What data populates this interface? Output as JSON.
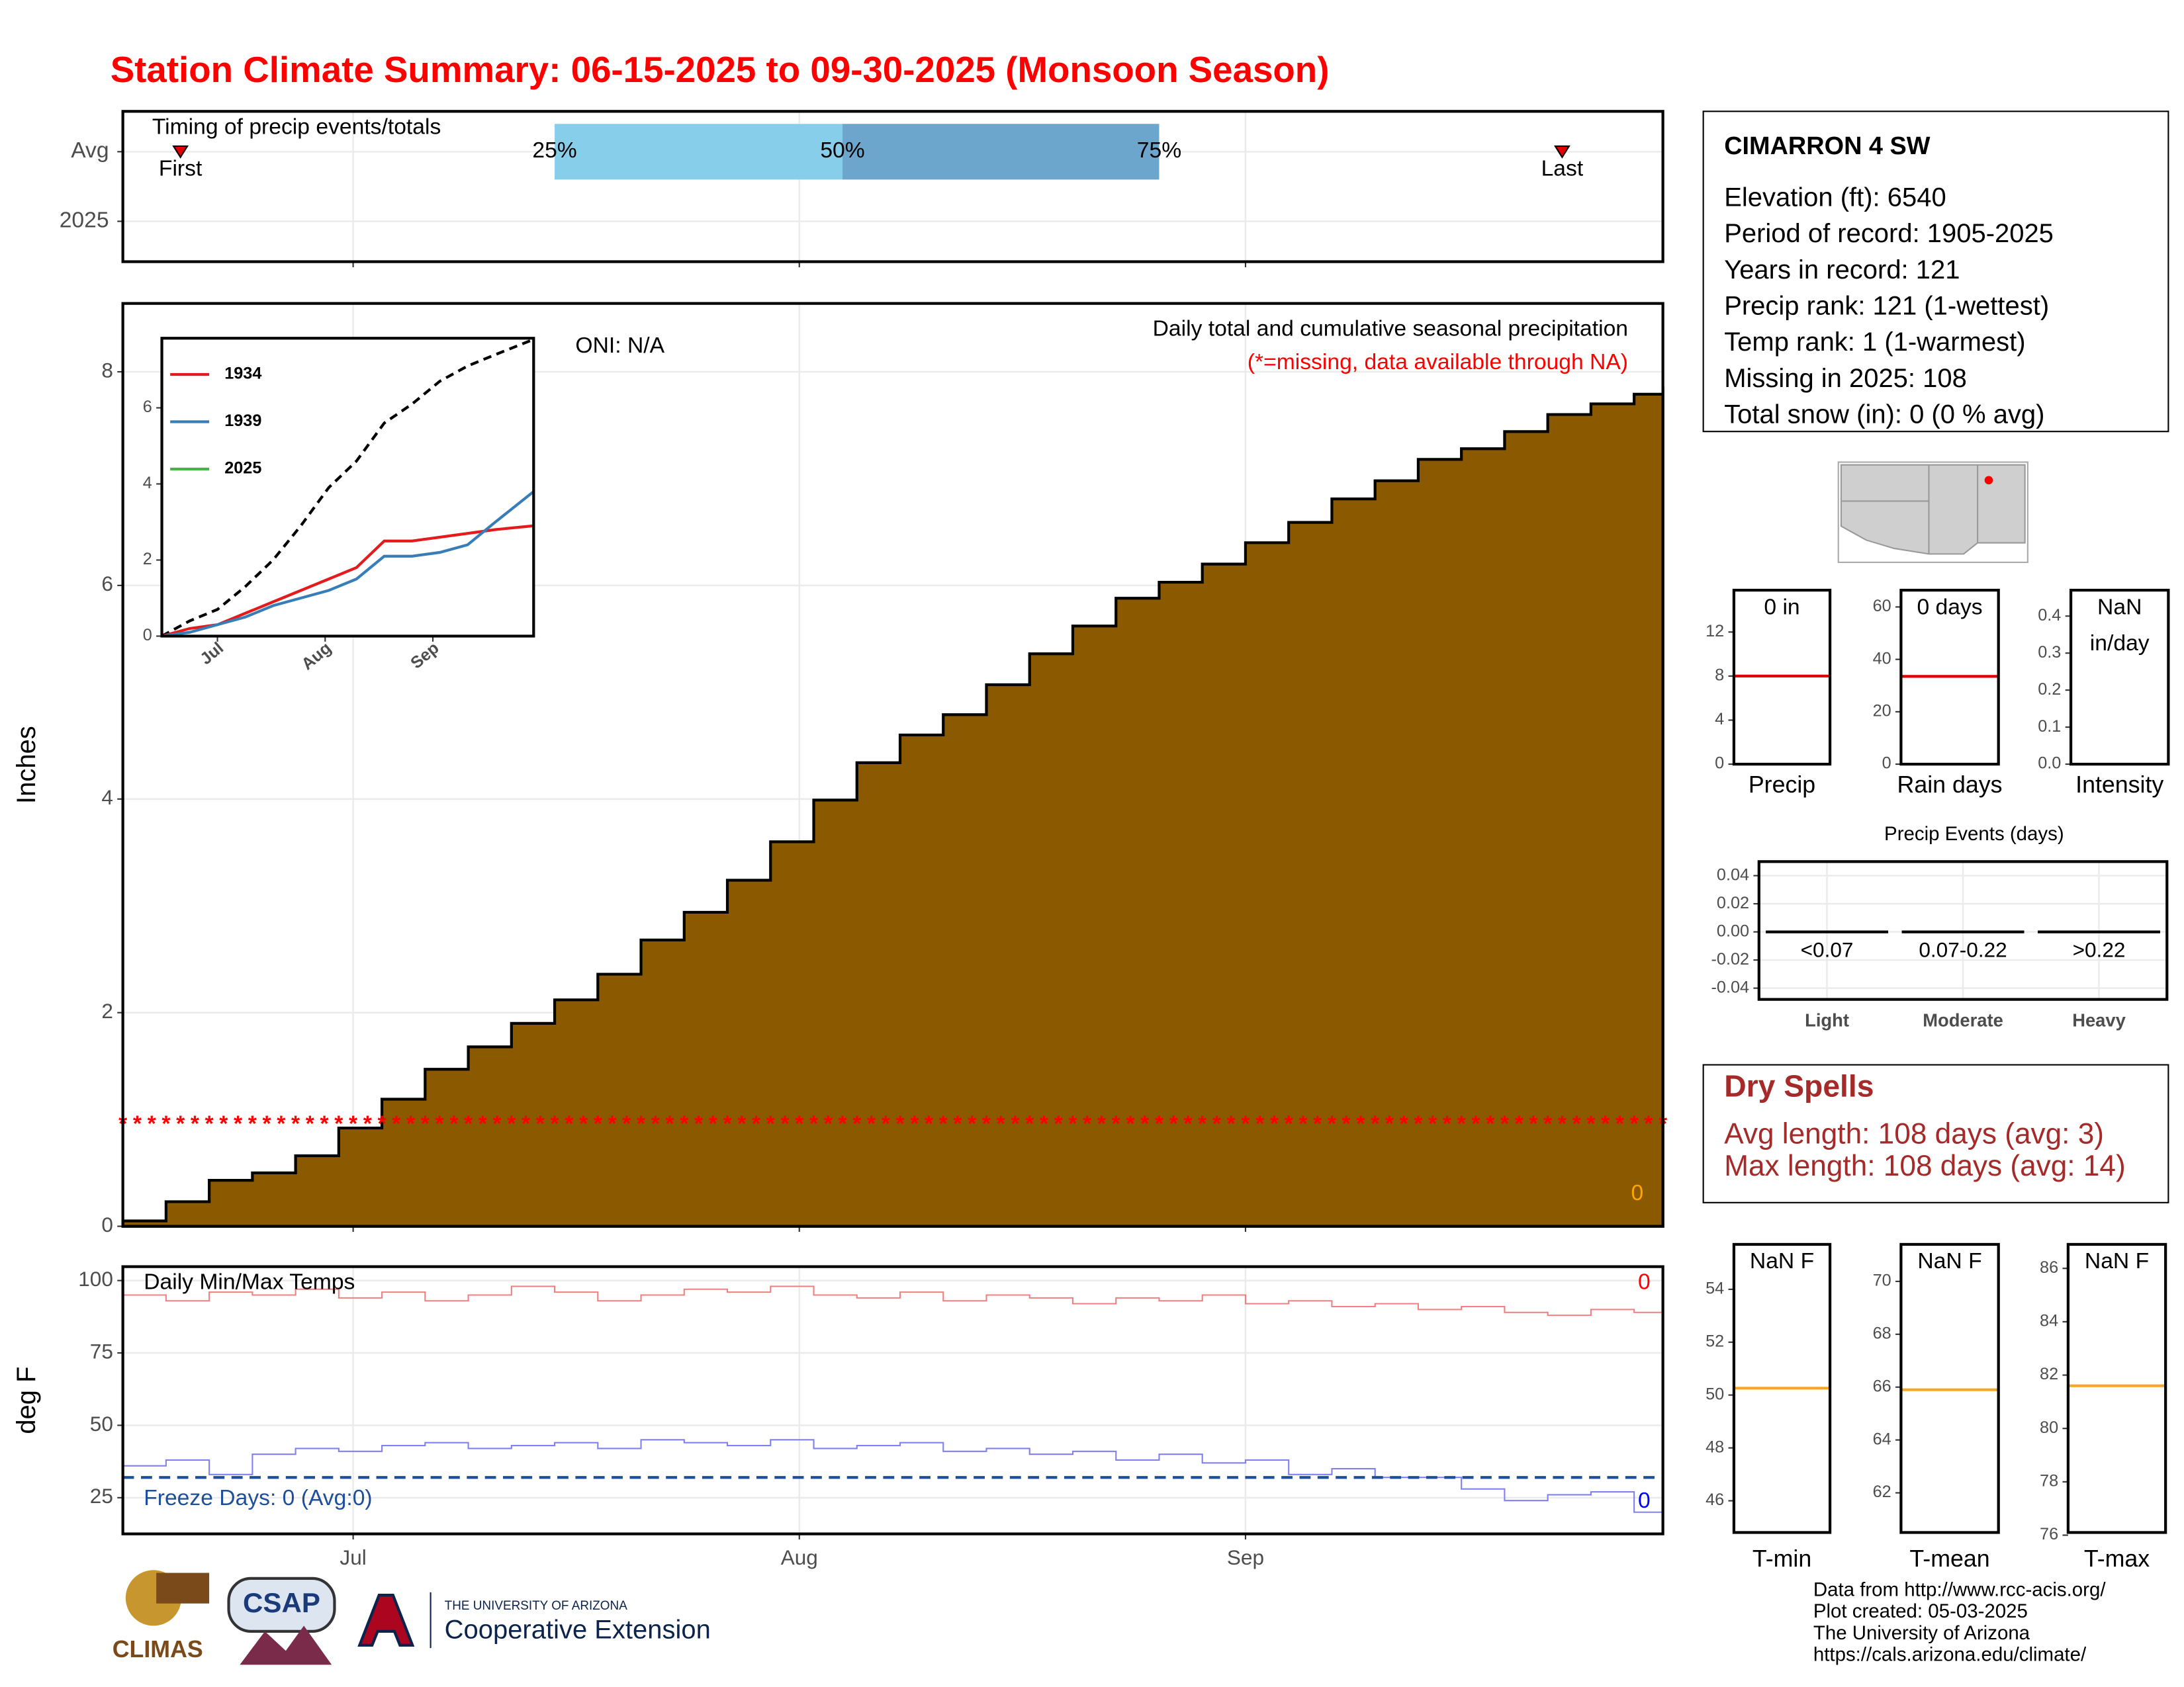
{
  "title": "Station Climate Summary: 06-15-2025 to 09-30-2025 (Monsoon Season)",
  "chart_data": [
    {
      "type": "timing",
      "label": "Timing of precip events/totals",
      "categories": [
        "Avg",
        "2025"
      ],
      "xlim": [
        0,
        107
      ],
      "xticks": [
        {
          "value": 16,
          "label": "Jul"
        },
        {
          "value": 47,
          "label": "Aug"
        },
        {
          "value": 78,
          "label": "Sep"
        }
      ],
      "quantiles": [
        {
          "value": 30,
          "label": "25%"
        },
        {
          "value": 50,
          "label": "50%"
        },
        {
          "value": 72,
          "label": "75%"
        }
      ],
      "colors": [
        "#87ceeb",
        "#6ca6cd"
      ],
      "markers": [
        {
          "value": 4,
          "label": "First"
        },
        {
          "value": 100,
          "label": "Last"
        }
      ],
      "marker_color": "#e00000",
      "grid": true
    },
    {
      "type": "step-area",
      "ylabel": "Inches",
      "subtitle": "Daily total and cumulative seasonal precipitation",
      "note": "(*=missing, data available through NA)",
      "oni": "ONI: N/A",
      "daily_label": "0",
      "xlim": [
        0,
        107
      ],
      "xticks": [
        {
          "value": 16,
          "label": "Jul"
        },
        {
          "value": 47,
          "label": "Aug"
        },
        {
          "value": 78,
          "label": "Sep"
        }
      ],
      "ylim": [
        0,
        8.64
      ],
      "yticks": [
        0,
        2,
        4,
        6,
        8
      ],
      "grid": true,
      "color": "#8b5a00",
      "x": [
        0,
        3,
        6,
        9,
        12,
        15,
        18,
        21,
        24,
        27,
        30,
        33,
        36,
        39,
        42,
        45,
        48,
        51,
        54,
        57,
        60,
        63,
        66,
        69,
        72,
        75,
        78,
        81,
        84,
        87,
        90,
        93,
        96,
        99,
        102,
        105,
        107
      ],
      "values": [
        0.05,
        0.23,
        0.43,
        0.5,
        0.66,
        0.92,
        1.19,
        1.47,
        1.68,
        1.9,
        2.12,
        2.36,
        2.68,
        2.94,
        3.24,
        3.6,
        3.99,
        4.34,
        4.6,
        4.79,
        5.07,
        5.36,
        5.62,
        5.88,
        6.03,
        6.2,
        6.4,
        6.59,
        6.81,
        6.98,
        7.18,
        7.28,
        7.44,
        7.6,
        7.7,
        7.79,
        7.86
      ],
      "missing": {
        "symbol": "*",
        "y": 1,
        "color": "#ff0000"
      }
    },
    {
      "type": "line",
      "xlim": [
        0,
        107
      ],
      "xticks": [
        {
          "value": 16,
          "label": "Jul"
        },
        {
          "value": 47,
          "label": "Aug"
        },
        {
          "value": 78,
          "label": "Sep"
        }
      ],
      "ylim": [
        0,
        7.83
      ],
      "yticks": [
        0,
        2,
        4,
        6
      ],
      "x": [
        0,
        8,
        16,
        24,
        32,
        40,
        48,
        56,
        64,
        72,
        80,
        88,
        96,
        107
      ],
      "average": {
        "color": "#000000",
        "dashed": true,
        "values": [
          0,
          0.4,
          0.7,
          1.3,
          2,
          2.9,
          3.9,
          4.6,
          5.6,
          6.1,
          6.7,
          7.1,
          7.4,
          7.8
        ]
      },
      "series": [
        {
          "name": "1934",
          "color": "#e41a1c",
          "values": [
            0,
            0.2,
            0.3,
            0.6,
            0.9,
            1.2,
            1.5,
            1.8,
            2.5,
            2.5,
            2.6,
            2.7,
            2.8,
            2.9
          ]
        },
        {
          "name": "1939",
          "color": "#377eb8",
          "values": [
            0,
            0.1,
            0.3,
            0.5,
            0.8,
            1.0,
            1.2,
            1.5,
            2.1,
            2.1,
            2.2,
            2.4,
            3.0,
            3.8
          ]
        },
        {
          "name": "2025",
          "color": "#4daf4a",
          "values": [
            null,
            null,
            null,
            null,
            null,
            null,
            null,
            null,
            null,
            null,
            null,
            null,
            null,
            null
          ]
        }
      ]
    },
    {
      "type": "step-line",
      "label": "Daily Min/Max Temps",
      "ylabel": "deg F",
      "freeze_label": "Freeze Days: 0 (Avg:0)",
      "max_count": "0",
      "min_count": "0",
      "xlim": [
        0,
        107
      ],
      "xticks": [
        {
          "value": 16,
          "label": "Jul"
        },
        {
          "value": 47,
          "label": "Aug"
        },
        {
          "value": 78,
          "label": "Sep"
        }
      ],
      "ylim": [
        12.5,
        104.8
      ],
      "yticks": [
        25,
        50,
        75,
        100
      ],
      "grid": true,
      "x": [
        0,
        3,
        6,
        9,
        12,
        15,
        18,
        21,
        24,
        27,
        30,
        33,
        36,
        39,
        42,
        45,
        48,
        51,
        54,
        57,
        60,
        63,
        66,
        69,
        72,
        75,
        78,
        81,
        84,
        87,
        90,
        93,
        96,
        99,
        102,
        105,
        107
      ],
      "series": [
        {
          "name": "max",
          "color": "#f08080",
          "values": [
            95,
            93,
            96,
            95,
            97,
            94,
            96,
            93,
            95,
            98,
            96,
            93,
            95,
            97,
            96,
            98,
            95,
            94,
            96,
            93,
            95,
            94,
            92,
            94,
            93,
            95,
            92,
            93,
            91,
            92,
            90,
            91,
            89,
            88,
            90,
            89,
            88
          ]
        },
        {
          "name": "min",
          "color": "#8080f0",
          "values": [
            36,
            38,
            33,
            40,
            42,
            41,
            43,
            44,
            42,
            43,
            44,
            42,
            45,
            44,
            43,
            45,
            42,
            43,
            44,
            41,
            42,
            40,
            41,
            38,
            40,
            37,
            38,
            33,
            35,
            32,
            32,
            28,
            24,
            26,
            27,
            20,
            29
          ]
        }
      ],
      "hline": {
        "value": 32,
        "color": "#1f4e9b",
        "dashed": true
      }
    },
    {
      "type": "box-stat",
      "label_lines": [
        "0 in"
      ],
      "xlabel": "Precip",
      "ylim": [
        0,
        15.8
      ],
      "yticks": [
        0,
        4,
        8,
        12
      ],
      "value": 8,
      "color": "#e00000"
    },
    {
      "type": "box-stat",
      "label_lines": [
        "0 days"
      ],
      "xlabel": "Rain days",
      "ylim": [
        0,
        66.4
      ],
      "yticks": [
        0,
        20,
        40,
        60
      ],
      "value": 33.5,
      "color": "#e00000"
    },
    {
      "type": "box-stat",
      "label_lines": [
        "NaN",
        "in/day"
      ],
      "xlabel": "Intensity",
      "ylim": [
        0,
        0.47
      ],
      "yticks": [
        {
          "value": 0,
          "label": "0.0"
        },
        0.1,
        0.2,
        0.3,
        0.4
      ],
      "value": null,
      "color": "#e00000"
    },
    {
      "type": "bar",
      "title": "Precip Events (days)",
      "categories": [
        "Light",
        "Moderate",
        "Heavy"
      ],
      "bin_labels": [
        "<0.07",
        "0.07-0.22",
        ">0.22"
      ],
      "values": [
        0,
        0,
        0
      ],
      "color": "#000000",
      "ylim": [
        -0.048,
        0.05
      ],
      "grid": true,
      "yticks": [
        {
          "value": 0.04,
          "label": "0.04"
        },
        {
          "value": 0.02,
          "label": "0.02"
        },
        {
          "value": 0,
          "label": "0.00"
        },
        {
          "value": -0.02,
          "label": "-0.02"
        },
        {
          "value": -0.04,
          "label": "-0.04"
        }
      ]
    },
    {
      "type": "box-stat",
      "label_lines": [
        "NaN F"
      ],
      "xlabel": "T-min",
      "ylim": [
        44.8,
        55.7
      ],
      "yticks": [
        46,
        48,
        50,
        52,
        54
      ],
      "value": 50.26,
      "color": "#f5a623"
    },
    {
      "type": "box-stat",
      "label_lines": [
        "NaN F"
      ],
      "xlabel": "T-mean",
      "ylim": [
        60.5,
        71.4
      ],
      "yticks": [
        62,
        64,
        66,
        68,
        70
      ],
      "value": 65.9,
      "color": "#f5a623"
    },
    {
      "type": "box-stat",
      "label_lines": [
        "NaN F"
      ],
      "xlabel": "T-max",
      "ylim": [
        76.1,
        86.9
      ],
      "yticks": [
        76,
        78,
        80,
        82,
        84,
        86
      ],
      "value": 81.6,
      "color": "#f5a623"
    }
  ],
  "station": {
    "name": "CIMARRON 4 SW",
    "lines": [
      "Elevation (ft): 6540",
      "Period of record: 1905-2025",
      "Years in record: 121",
      "Precip rank: 121 (1-wettest)",
      "Temp rank: 1 (1-warmest)",
      "Missing in 2025: 108",
      "Total snow (in): 0 (0 % avg)"
    ]
  },
  "dry_spells": {
    "title": "Dry Spells",
    "lines": [
      "Avg length: 108 days (avg: 3)",
      "Max length: 108 days (avg: 14)"
    ]
  },
  "footer": [
    "Data from http://www.rcc-acis.org/",
    "Plot created: 05-03-2025",
    "The University of Arizona",
    "https://cals.arizona.edu/climate/"
  ],
  "logos": [
    "CLIMAS",
    "CSAP",
    "THE UNIVERSITY OF ARIZONA",
    "Cooperative Extension"
  ]
}
